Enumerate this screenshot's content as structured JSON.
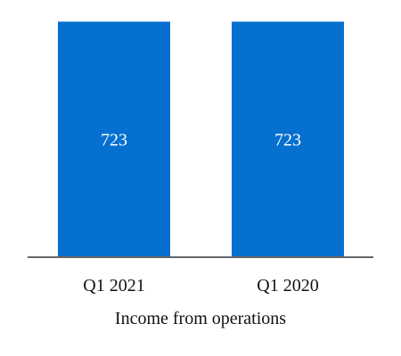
{
  "chart_data": {
    "type": "bar",
    "categories": [
      "Q1 2021",
      "Q1 2020"
    ],
    "values": [
      723,
      723
    ],
    "data_labels": [
      "723",
      "723"
    ],
    "xlabel": "Income from operations",
    "ylabel": "",
    "ylim": [
      0,
      1800
    ],
    "grid": false,
    "legend": "none",
    "bar_color": "#0570CF",
    "axis_color": "#666666"
  }
}
